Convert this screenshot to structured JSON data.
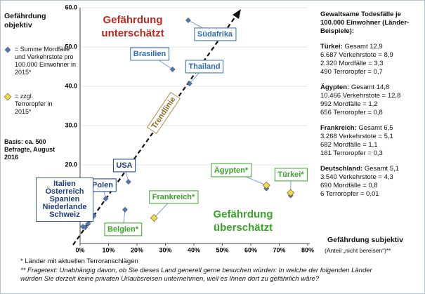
{
  "chart_data": {
    "type": "scatter",
    "y_label": "Gefährdung objektiv",
    "x_label": "Gefährdung subjektiv",
    "x_sublabel": "(Anteil „nicht bereisen“)**",
    "xlim": [
      0,
      80
    ],
    "xticks": [
      {
        "value": 0,
        "label": "0%"
      },
      {
        "value": 10,
        "label": "10%"
      },
      {
        "value": 20,
        "label": "20%"
      },
      {
        "value": 30,
        "label": "30%"
      },
      {
        "value": 40,
        "label": "40%"
      },
      {
        "value": 50,
        "label": "50%"
      },
      {
        "value": 60,
        "label": "60%"
      },
      {
        "value": 70,
        "label": "70%"
      },
      {
        "value": 80,
        "label": "80%"
      }
    ],
    "ylim": [
      0,
      60
    ],
    "yticks": [
      {
        "value": 20,
        "label": "20.0"
      },
      {
        "value": 30,
        "label": "30.0"
      },
      {
        "value": 40,
        "label": "40.0"
      },
      {
        "value": 50,
        "label": "50.0"
      },
      {
        "value": 60,
        "label": "60.0"
      }
    ],
    "grid": true,
    "series": [
      {
        "name": "= Summe Mordfälle und Verkehrstote pro 100.000 Einwohner in 2015*",
        "color": "#4a7bc4",
        "x": [
          1,
          1.8,
          2.8,
          3.8,
          4.8,
          9,
          15.8,
          17,
          32.5,
          38.5,
          38,
          65.5,
          74
        ],
        "values": [
          4.3,
          4.1,
          5,
          6,
          7,
          11.4,
          8.6,
          15.7,
          44.3,
          40.7,
          56.8,
          14,
          12.2
        ]
      },
      {
        "name": "= zzgl. Terroropfer in 2015*",
        "color": "#f2dc3c",
        "x": [
          26,
          65.5,
          74
        ],
        "values": [
          6.5,
          14.8,
          12.9
        ]
      }
    ],
    "labels": [
      "Südafrika",
      "Brasilien",
      "Thailand",
      "USA",
      "Polen",
      "Frankreich*",
      "Ägypten*",
      "Türkei*",
      "Belgien*"
    ],
    "group_labels": [
      "Italien",
      "Österreich",
      "Spanien",
      "Niederlande",
      "Schweiz"
    ],
    "zone_under": "Gefährdung unterschätzt",
    "zone_over": "Gefährdung überschätzt",
    "trend_label": "Trendlinie",
    "basis": "Basis: ca. 500 Befragte, August 2016",
    "footnotes": [
      "* Länder mit aktuellen Terroranschlägen",
      "** Fragetext: Unabhängig davon, ob Sie dieses Land generell gerne besuchen würden: In welche der folgenden Länder würden Sie derzeit keine privaten Urlaubsreisen unternehmen, weil es Ihnen dort zu gefährlich wäre?"
    ],
    "panel": {
      "title": "Gewaltsame Todesfälle je 100.000 Einwohner (Länder-Beispiele):",
      "blocks": [
        {
          "country": "Türkei:",
          "total": "Gesamt 12,9",
          "lines": [
            "6.687 Verkehrstote = 8,9",
            "2.320 Mordfälle = 3,3",
            "490 Terroropfer = 0,7"
          ]
        },
        {
          "country": "Ägypten:",
          "total": "Gesamt 14,8",
          "lines": [
            "10.466 Verkehrstote = 12,8",
            "992 Mordfälle = 1,2",
            "656 Terroropfer = 0,8"
          ]
        },
        {
          "country": "Frankreich:",
          "total": "Gesamt 6,5",
          "lines": [
            "3.268 Verkehrstote = 5,1",
            "682 Mordfälle = 1,1",
            "161 Terroropfer = 0,3"
          ]
        },
        {
          "country": "Deutschland:",
          "total": "Gesamt 5,1",
          "lines": [
            "3.540 Verkehrstote = 4,3",
            "690 Mordfälle = 0,8",
            "6 Terroropfer = 0,01"
          ]
        }
      ]
    }
  }
}
